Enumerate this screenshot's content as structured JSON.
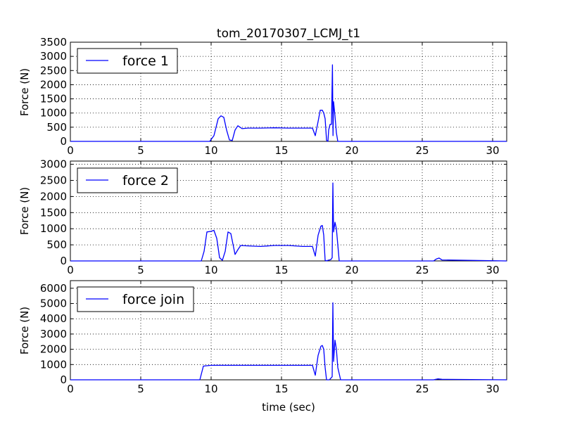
{
  "chart_data": [
    {
      "type": "line",
      "title": "tom_20170307_LCMJ_t1",
      "xlabel": "",
      "ylabel": "Force (N)",
      "xlim": [
        0,
        31
      ],
      "ylim": [
        0,
        3500
      ],
      "xticks": [
        "0",
        "5",
        "10",
        "15",
        "20",
        "25",
        "30"
      ],
      "yticks": [
        "0",
        "500",
        "1000",
        "1500",
        "2000",
        "2500",
        "3000",
        "3500"
      ],
      "grid": true,
      "legend": "top-left",
      "series": [
        {
          "name": "force 1",
          "color": "#0000ff",
          "x": [
            0,
            9.9,
            10.2,
            10.5,
            10.7,
            10.9,
            11.1,
            11.3,
            11.5,
            11.7,
            11.9,
            12.2,
            12.6,
            13.5,
            14.5,
            15.5,
            16.5,
            17.2,
            17.4,
            17.6,
            17.75,
            17.9,
            18.0,
            18.1,
            18.2,
            18.3,
            18.35,
            18.4,
            18.45,
            18.55,
            18.62,
            18.66,
            18.7,
            18.8,
            18.9,
            19.0,
            19.2,
            31
          ],
          "y": [
            0,
            0,
            200,
            800,
            900,
            850,
            400,
            50,
            30,
            400,
            550,
            450,
            470,
            470,
            480,
            470,
            470,
            470,
            200,
            700,
            1100,
            1100,
            1000,
            800,
            40,
            0,
            400,
            500,
            600,
            600,
            2700,
            200,
            1400,
            900,
            300,
            0,
            0,
            0
          ]
        }
      ]
    },
    {
      "type": "line",
      "title": "",
      "xlabel": "",
      "ylabel": "Force (N)",
      "xlim": [
        0,
        31
      ],
      "ylim": [
        0,
        3100
      ],
      "xticks": [
        "0",
        "5",
        "10",
        "15",
        "20",
        "25",
        "30"
      ],
      "yticks": [
        "0",
        "500",
        "1000",
        "1500",
        "2000",
        "2500",
        "3000"
      ],
      "grid": true,
      "legend": "top-left",
      "series": [
        {
          "name": "force 2",
          "color": "#0000ff",
          "x": [
            0,
            9.3,
            9.5,
            9.7,
            10.0,
            10.2,
            10.4,
            10.6,
            10.8,
            11.0,
            11.2,
            11.4,
            11.7,
            11.9,
            12.1,
            12.5,
            13.5,
            14.5,
            15.5,
            16.5,
            17.2,
            17.4,
            17.6,
            17.8,
            17.9,
            18.0,
            18.1,
            18.2,
            18.3,
            18.4,
            18.5,
            18.6,
            18.65,
            18.7,
            18.8,
            18.9,
            19.0,
            19.1,
            19.3,
            25.8,
            26.0,
            26.2,
            26.4,
            31
          ],
          "y": [
            0,
            0,
            300,
            900,
            920,
            950,
            700,
            100,
            20,
            300,
            900,
            850,
            200,
            350,
            480,
            470,
            450,
            480,
            480,
            450,
            450,
            150,
            800,
            1080,
            1100,
            800,
            20,
            0,
            20,
            30,
            40,
            100,
            2420,
            900,
            1200,
            1000,
            500,
            0,
            0,
            0,
            60,
            90,
            30,
            0
          ]
        }
      ]
    },
    {
      "type": "line",
      "title": "",
      "xlabel": "time (sec)",
      "ylabel": "Force (N)",
      "xlim": [
        0,
        31
      ],
      "ylim": [
        0,
        6500
      ],
      "xticks": [
        "0",
        "5",
        "10",
        "15",
        "20",
        "25",
        "30"
      ],
      "yticks": [
        "0",
        "1000",
        "2000",
        "3000",
        "4000",
        "5000",
        "6000"
      ],
      "grid": true,
      "legend": "top-left",
      "series": [
        {
          "name": "force join",
          "color": "#0000ff",
          "x": [
            0,
            9.2,
            9.45,
            9.7,
            10.0,
            10.5,
            11.0,
            12.0,
            13.5,
            15.0,
            16.5,
            17.2,
            17.4,
            17.6,
            17.8,
            17.9,
            18.0,
            18.1,
            18.2,
            18.3,
            18.4,
            18.5,
            18.6,
            18.65,
            18.7,
            18.8,
            18.9,
            19.0,
            19.2,
            25.8,
            26.1,
            26.4,
            31
          ],
          "y": [
            0,
            0,
            900,
            920,
            950,
            950,
            950,
            950,
            950,
            950,
            950,
            950,
            300,
            1600,
            2200,
            2250,
            2000,
            800,
            0,
            0,
            0,
            100,
            200,
            5050,
            1200,
            2600,
            2000,
            800,
            0,
            0,
            60,
            30,
            0
          ]
        }
      ]
    }
  ]
}
